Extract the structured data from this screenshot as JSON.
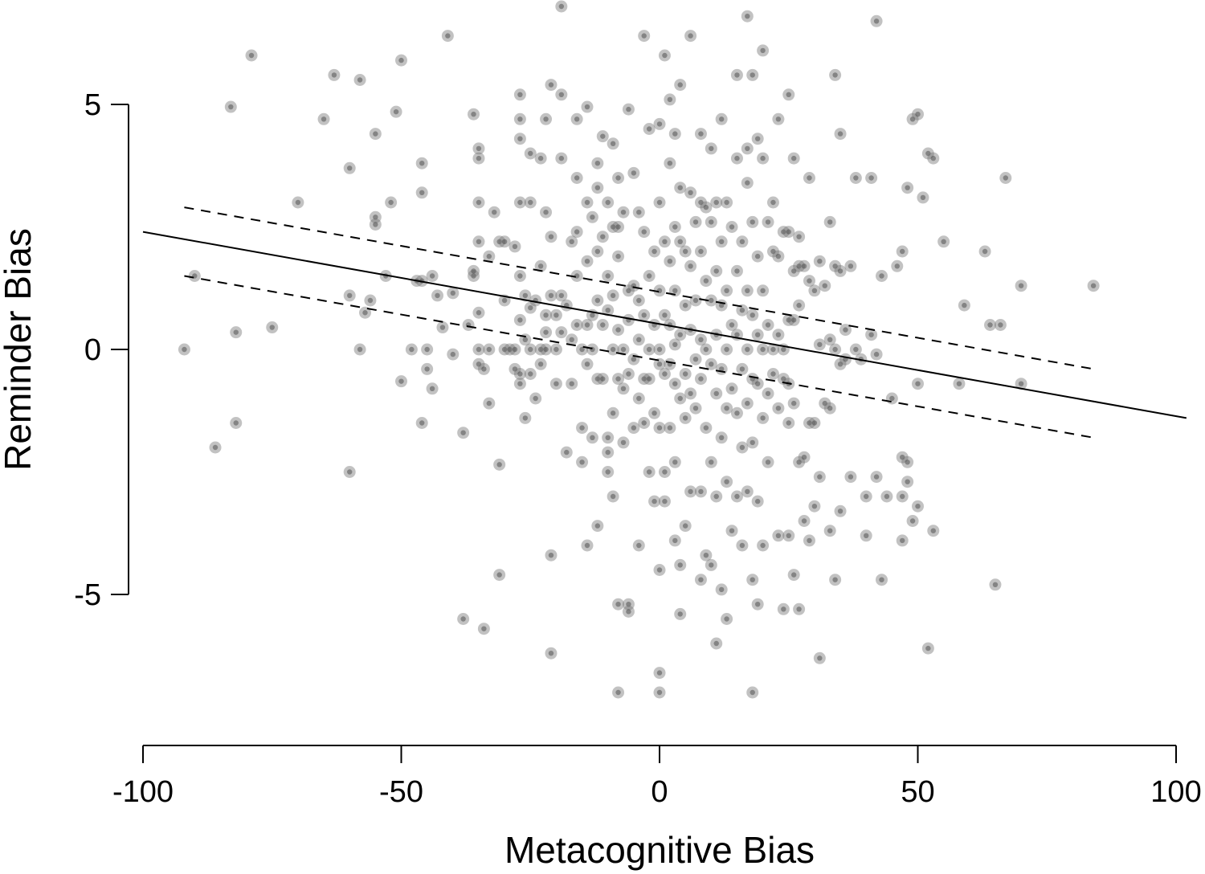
{
  "chart_data": {
    "type": "scatter",
    "xlabel": "Metacognitive Bias",
    "ylabel": "Reminder Bias",
    "xlim": [
      -100,
      100
    ],
    "ylim": [
      -8,
      7
    ],
    "x_ticks": [
      -100,
      -50,
      0,
      50,
      100
    ],
    "x_tick_labels": [
      "-100",
      "-50",
      "0",
      "50",
      "100"
    ],
    "y_ticks": [
      -5,
      0,
      5
    ],
    "y_tick_labels": [
      "-5",
      "0",
      "5"
    ],
    "grid": false,
    "point_color": "#8c8c8c",
    "regression": {
      "fit": [
        [
          -100,
          2.4
        ],
        [
          102,
          -1.4
        ]
      ],
      "ci_upper": [
        [
          -92,
          2.9
        ],
        [
          84,
          -0.4
        ]
      ],
      "ci_lower": [
        [
          -92,
          1.5
        ],
        [
          84,
          -1.8
        ]
      ]
    },
    "points": [
      [
        -92,
        0.0
      ],
      [
        -90,
        1.5
      ],
      [
        -86,
        -2.0
      ],
      [
        -82,
        0.35
      ],
      [
        -82,
        -1.5
      ],
      [
        -83,
        4.95
      ],
      [
        -79,
        6.0
      ],
      [
        -75,
        0.45
      ],
      [
        -70,
        3.0
      ],
      [
        -65,
        4.7
      ],
      [
        -63,
        5.6
      ],
      [
        -60,
        3.7
      ],
      [
        -60,
        -2.5
      ],
      [
        -60,
        1.1
      ],
      [
        -58,
        5.5
      ],
      [
        -58,
        0.0
      ],
      [
        -57,
        0.75
      ],
      [
        -56,
        1.0
      ],
      [
        -55,
        4.4
      ],
      [
        -55,
        2.7
      ],
      [
        -55,
        2.55
      ],
      [
        -53,
        1.5
      ],
      [
        -52,
        3.0
      ],
      [
        -51,
        4.85
      ],
      [
        -50,
        5.9
      ],
      [
        -50,
        -0.65
      ],
      [
        -48,
        0.0
      ],
      [
        -47,
        1.4
      ],
      [
        -46,
        3.8
      ],
      [
        -46,
        3.2
      ],
      [
        -46,
        1.4
      ],
      [
        -46,
        -1.5
      ],
      [
        -45,
        -0.4
      ],
      [
        -45,
        0.0
      ],
      [
        -44,
        -0.8
      ],
      [
        -44,
        1.5
      ],
      [
        -43,
        1.1
      ],
      [
        -42,
        0.45
      ],
      [
        -41,
        6.4
      ],
      [
        -40,
        1.15
      ],
      [
        -40,
        -0.1
      ],
      [
        -38,
        -5.5
      ],
      [
        -38,
        -1.7
      ],
      [
        -37,
        0.5
      ],
      [
        -36,
        1.5
      ],
      [
        -36,
        1.6
      ],
      [
        -36,
        4.8
      ],
      [
        -35,
        3.9
      ],
      [
        -35,
        3.0
      ],
      [
        -35,
        4.1
      ],
      [
        -35,
        2.2
      ],
      [
        -35,
        0.75
      ],
      [
        -35,
        0.0
      ],
      [
        -35,
        -0.3
      ],
      [
        -34,
        -5.7
      ],
      [
        -34,
        -0.4
      ],
      [
        -33,
        1.9
      ],
      [
        -33,
        0.0
      ],
      [
        -33,
        -1.1
      ],
      [
        -32,
        2.8
      ],
      [
        -31,
        -4.6
      ],
      [
        -31,
        -2.35
      ],
      [
        -31,
        2.2
      ],
      [
        -30,
        2.2
      ],
      [
        -30,
        1.0
      ],
      [
        -30,
        0.0
      ],
      [
        -29,
        0.0
      ],
      [
        -28,
        0.0
      ],
      [
        -28,
        2.1
      ],
      [
        -28,
        -0.4
      ],
      [
        -27,
        5.2
      ],
      [
        -27,
        4.7
      ],
      [
        -27,
        4.3
      ],
      [
        -27,
        3.0
      ],
      [
        -27,
        1.5
      ],
      [
        -27,
        0.6
      ],
      [
        -27,
        -0.5
      ],
      [
        -27,
        -0.7
      ],
      [
        -26,
        0.2
      ],
      [
        -26,
        1.1
      ],
      [
        -26,
        -1.4
      ],
      [
        -25,
        4.0
      ],
      [
        -25,
        3.0
      ],
      [
        -25,
        0.85
      ],
      [
        -25,
        0.0
      ],
      [
        -25,
        -0.5
      ],
      [
        -24,
        1.0
      ],
      [
        -24,
        -1.0
      ],
      [
        -23,
        3.9
      ],
      [
        -23,
        1.7
      ],
      [
        -23,
        0.0
      ],
      [
        -23,
        -0.3
      ],
      [
        -22,
        2.8
      ],
      [
        -22,
        4.7
      ],
      [
        -22,
        0.7
      ],
      [
        -22,
        0.35
      ],
      [
        -22,
        0.0
      ],
      [
        -21,
        -4.2
      ],
      [
        -21,
        -6.2
      ],
      [
        -21,
        5.4
      ],
      [
        -21,
        2.3
      ],
      [
        -21,
        1.1
      ],
      [
        -20,
        0.0
      ],
      [
        -20,
        0.7
      ],
      [
        -20,
        -0.7
      ],
      [
        -19,
        7.0
      ],
      [
        -19,
        5.2
      ],
      [
        -19,
        3.9
      ],
      [
        -19,
        1.1
      ],
      [
        -19,
        0.35
      ],
      [
        -18,
        -2.1
      ],
      [
        -18,
        0.9
      ],
      [
        -17,
        2.2
      ],
      [
        -17,
        0.2
      ],
      [
        -17,
        -0.7
      ],
      [
        -16,
        4.7
      ],
      [
        -16,
        3.5
      ],
      [
        -16,
        2.4
      ],
      [
        -16,
        1.5
      ],
      [
        -16,
        0.5
      ],
      [
        -15,
        0.0
      ],
      [
        -15,
        -1.6
      ],
      [
        -15,
        -2.3
      ],
      [
        -14,
        4.95
      ],
      [
        -14,
        3.0
      ],
      [
        -14,
        1.8
      ],
      [
        -14,
        0.5
      ],
      [
        -14,
        -0.3
      ],
      [
        -14,
        -4.0
      ],
      [
        -13,
        2.7
      ],
      [
        -13,
        0.7
      ],
      [
        -13,
        0.0
      ],
      [
        -13,
        -1.8
      ],
      [
        -12,
        3.8
      ],
      [
        -12,
        3.3
      ],
      [
        -12,
        2.0
      ],
      [
        -12,
        1.0
      ],
      [
        -12,
        -0.6
      ],
      [
        -12,
        -3.6
      ],
      [
        -11,
        4.35
      ],
      [
        -11,
        2.3
      ],
      [
        -11,
        0.5
      ],
      [
        -11,
        -0.6
      ],
      [
        -10,
        3.0
      ],
      [
        -10,
        1.5
      ],
      [
        -10,
        0.8
      ],
      [
        -10,
        -1.8
      ],
      [
        -10,
        -2.1
      ],
      [
        -10,
        -2.5
      ],
      [
        -9,
        4.2
      ],
      [
        -9,
        2.5
      ],
      [
        -9,
        1.1
      ],
      [
        -9,
        0.0
      ],
      [
        -9,
        -1.3
      ],
      [
        -9,
        -3.0
      ],
      [
        -8,
        3.5
      ],
      [
        -8,
        2.5
      ],
      [
        -8,
        1.9
      ],
      [
        -8,
        0.4
      ],
      [
        -8,
        -0.6
      ],
      [
        -8,
        -5.2
      ],
      [
        -8,
        -7.0
      ],
      [
        -7,
        2.8
      ],
      [
        -7,
        0.0
      ],
      [
        -7,
        -0.8
      ],
      [
        -7,
        -1.9
      ],
      [
        -6,
        4.9
      ],
      [
        -6,
        1.2
      ],
      [
        -6,
        0.6
      ],
      [
        -6,
        -0.5
      ],
      [
        -6,
        -5.2
      ],
      [
        -6,
        -5.35
      ],
      [
        -5,
        3.6
      ],
      [
        -5,
        1.3
      ],
      [
        -5,
        -0.2
      ],
      [
        -5,
        -1.6
      ],
      [
        -4,
        2.8
      ],
      [
        -4,
        1.0
      ],
      [
        -4,
        0.2
      ],
      [
        -4,
        -1.0
      ],
      [
        -4,
        -4.0
      ],
      [
        -3,
        6.4
      ],
      [
        -3,
        2.4
      ],
      [
        -3,
        0.7
      ],
      [
        -3,
        -0.6
      ],
      [
        -3,
        -1.5
      ],
      [
        -2,
        4.5
      ],
      [
        -2,
        1.5
      ],
      [
        -2,
        0.0
      ],
      [
        -2,
        -0.6
      ],
      [
        -2,
        -2.5
      ],
      [
        -1,
        2.0
      ],
      [
        -1,
        0.5
      ],
      [
        -1,
        -1.3
      ],
      [
        -1,
        -3.1
      ],
      [
        0,
        4.6
      ],
      [
        0,
        3.0
      ],
      [
        0,
        1.2
      ],
      [
        0,
        0.0
      ],
      [
        0,
        -0.3
      ],
      [
        0,
        -1.6
      ],
      [
        0,
        -4.5
      ],
      [
        0,
        -6.6
      ],
      [
        0,
        -7.0
      ],
      [
        1,
        6.0
      ],
      [
        1,
        2.2
      ],
      [
        1,
        0.7
      ],
      [
        1,
        -0.5
      ],
      [
        1,
        -2.5
      ],
      [
        1,
        -3.1
      ],
      [
        2,
        5.1
      ],
      [
        2,
        3.8
      ],
      [
        2,
        1.8
      ],
      [
        2,
        0.5
      ],
      [
        2,
        -0.3
      ],
      [
        2,
        -1.6
      ],
      [
        3,
        4.4
      ],
      [
        3,
        2.5
      ],
      [
        3,
        1.2
      ],
      [
        3,
        0.1
      ],
      [
        3,
        -0.7
      ],
      [
        3,
        -2.3
      ],
      [
        3,
        -3.9
      ],
      [
        4,
        5.4
      ],
      [
        4,
        3.3
      ],
      [
        4,
        2.2
      ],
      [
        4,
        0.3
      ],
      [
        4,
        -1.0
      ],
      [
        4,
        -4.4
      ],
      [
        4,
        -5.4
      ],
      [
        5,
        2.0
      ],
      [
        5,
        0.9
      ],
      [
        5,
        -0.5
      ],
      [
        5,
        -1.4
      ],
      [
        5,
        -3.6
      ],
      [
        6,
        6.4
      ],
      [
        6,
        3.2
      ],
      [
        6,
        1.7
      ],
      [
        6,
        0.4
      ],
      [
        6,
        -0.9
      ],
      [
        6,
        -2.9
      ],
      [
        7,
        2.6
      ],
      [
        7,
        1.0
      ],
      [
        7,
        -0.2
      ],
      [
        7,
        -1.2
      ],
      [
        8,
        4.4
      ],
      [
        8,
        3.0
      ],
      [
        8,
        2.0
      ],
      [
        8,
        0.2
      ],
      [
        8,
        -0.6
      ],
      [
        8,
        -2.9
      ],
      [
        8,
        -4.7
      ],
      [
        9,
        2.9
      ],
      [
        9,
        1.4
      ],
      [
        9,
        0.0
      ],
      [
        9,
        -1.6
      ],
      [
        9,
        -4.2
      ],
      [
        10,
        4.1
      ],
      [
        10,
        2.6
      ],
      [
        10,
        1.0
      ],
      [
        10,
        -0.3
      ],
      [
        10,
        -2.3
      ],
      [
        10,
        -4.4
      ],
      [
        11,
        3.0
      ],
      [
        11,
        1.6
      ],
      [
        11,
        0.3
      ],
      [
        11,
        -0.9
      ],
      [
        11,
        -3.0
      ],
      [
        11,
        -6.0
      ],
      [
        12,
        4.7
      ],
      [
        12,
        2.2
      ],
      [
        12,
        0.9
      ],
      [
        12,
        -0.4
      ],
      [
        12,
        -1.8
      ],
      [
        12,
        -4.9
      ],
      [
        13,
        3.0
      ],
      [
        13,
        1.2
      ],
      [
        13,
        0.0
      ],
      [
        13,
        -1.2
      ],
      [
        13,
        -2.7
      ],
      [
        13,
        -5.5
      ],
      [
        14,
        2.5
      ],
      [
        14,
        0.5
      ],
      [
        14,
        -0.8
      ],
      [
        14,
        -3.7
      ],
      [
        15,
        5.6
      ],
      [
        15,
        3.9
      ],
      [
        15,
        1.6
      ],
      [
        15,
        0.3
      ],
      [
        15,
        -1.3
      ],
      [
        15,
        -3.0
      ],
      [
        16,
        2.2
      ],
      [
        16,
        0.8
      ],
      [
        16,
        -0.4
      ],
      [
        16,
        -2.0
      ],
      [
        16,
        -4.0
      ],
      [
        17,
        6.8
      ],
      [
        17,
        4.1
      ],
      [
        17,
        3.4
      ],
      [
        17,
        1.2
      ],
      [
        17,
        0.0
      ],
      [
        17,
        -1.1
      ],
      [
        17,
        -2.9
      ],
      [
        18,
        5.6
      ],
      [
        18,
        2.6
      ],
      [
        18,
        0.7
      ],
      [
        18,
        -0.6
      ],
      [
        18,
        -1.9
      ],
      [
        18,
        -4.7
      ],
      [
        18,
        -7.0
      ],
      [
        19,
        4.3
      ],
      [
        19,
        1.9
      ],
      [
        19,
        0.3
      ],
      [
        19,
        -0.7
      ],
      [
        19,
        -3.1
      ],
      [
        19,
        -5.2
      ],
      [
        20,
        6.1
      ],
      [
        20,
        3.9
      ],
      [
        20,
        1.2
      ],
      [
        20,
        0.0
      ],
      [
        20,
        -1.4
      ],
      [
        20,
        -4.0
      ],
      [
        21,
        2.6
      ],
      [
        21,
        0.5
      ],
      [
        21,
        -0.9
      ],
      [
        21,
        -2.3
      ],
      [
        22,
        3.0
      ],
      [
        22,
        2.0
      ],
      [
        22,
        0.0
      ],
      [
        22,
        -0.5
      ],
      [
        23,
        4.7
      ],
      [
        23,
        1.9
      ],
      [
        23,
        0.3
      ],
      [
        23,
        -1.2
      ],
      [
        23,
        -3.8
      ],
      [
        24,
        2.4
      ],
      [
        24,
        0.0
      ],
      [
        24,
        -0.6
      ],
      [
        24,
        -5.3
      ],
      [
        25,
        5.2
      ],
      [
        25,
        2.4
      ],
      [
        25,
        0.6
      ],
      [
        25,
        -0.7
      ],
      [
        25,
        -1.5
      ],
      [
        25,
        -3.8
      ],
      [
        26,
        3.9
      ],
      [
        26,
        1.6
      ],
      [
        26,
        0.6
      ],
      [
        26,
        -1.1
      ],
      [
        26,
        -4.6
      ],
      [
        27,
        2.3
      ],
      [
        27,
        1.7
      ],
      [
        27,
        0.9
      ],
      [
        27,
        -2.3
      ],
      [
        27,
        -5.3
      ],
      [
        28,
        1.7
      ],
      [
        28,
        -2.2
      ],
      [
        28,
        -3.5
      ],
      [
        29,
        3.5
      ],
      [
        29,
        1.4
      ],
      [
        29,
        -1.5
      ],
      [
        29,
        -3.9
      ],
      [
        30,
        1.2
      ],
      [
        30,
        -1.5
      ],
      [
        30,
        -3.2
      ],
      [
        31,
        1.8
      ],
      [
        31,
        0.1
      ],
      [
        31,
        -2.6
      ],
      [
        31,
        -6.3
      ],
      [
        32,
        1.3
      ],
      [
        32,
        -1.1
      ],
      [
        33,
        2.6
      ],
      [
        33,
        0.2
      ],
      [
        33,
        -1.2
      ],
      [
        33,
        -3.7
      ],
      [
        34,
        5.6
      ],
      [
        34,
        1.7
      ],
      [
        34,
        0.0
      ],
      [
        34,
        -4.7
      ],
      [
        35,
        4.4
      ],
      [
        35,
        1.6
      ],
      [
        35,
        -0.3
      ],
      [
        35,
        -3.3
      ],
      [
        36,
        0.4
      ],
      [
        36,
        -0.2
      ],
      [
        37,
        1.7
      ],
      [
        37,
        -2.6
      ],
      [
        38,
        3.5
      ],
      [
        38,
        0.0
      ],
      [
        39,
        -0.2
      ],
      [
        40,
        -3.0
      ],
      [
        40,
        -3.8
      ],
      [
        41,
        3.5
      ],
      [
        41,
        0.3
      ],
      [
        42,
        6.7
      ],
      [
        42,
        -0.1
      ],
      [
        42,
        -2.6
      ],
      [
        43,
        1.5
      ],
      [
        43,
        -4.7
      ],
      [
        44,
        -3.0
      ],
      [
        45,
        -1.0
      ],
      [
        46,
        1.7
      ],
      [
        47,
        2.0
      ],
      [
        47,
        -2.2
      ],
      [
        47,
        -3.0
      ],
      [
        47,
        -3.9
      ],
      [
        48,
        3.3
      ],
      [
        48,
        -2.3
      ],
      [
        48,
        -2.7
      ],
      [
        49,
        4.7
      ],
      [
        49,
        -3.5
      ],
      [
        50,
        4.8
      ],
      [
        50,
        -0.7
      ],
      [
        50,
        -3.2
      ],
      [
        51,
        3.1
      ],
      [
        52,
        4.0
      ],
      [
        52,
        -6.1
      ],
      [
        53,
        3.9
      ],
      [
        53,
        -3.7
      ],
      [
        55,
        2.2
      ],
      [
        58,
        -0.7
      ],
      [
        59,
        0.9
      ],
      [
        63,
        2.0
      ],
      [
        64,
        0.5
      ],
      [
        65,
        -4.8
      ],
      [
        66,
        0.5
      ],
      [
        67,
        3.5
      ],
      [
        70,
        1.3
      ],
      [
        70,
        -0.7
      ],
      [
        84,
        1.3
      ]
    ]
  }
}
